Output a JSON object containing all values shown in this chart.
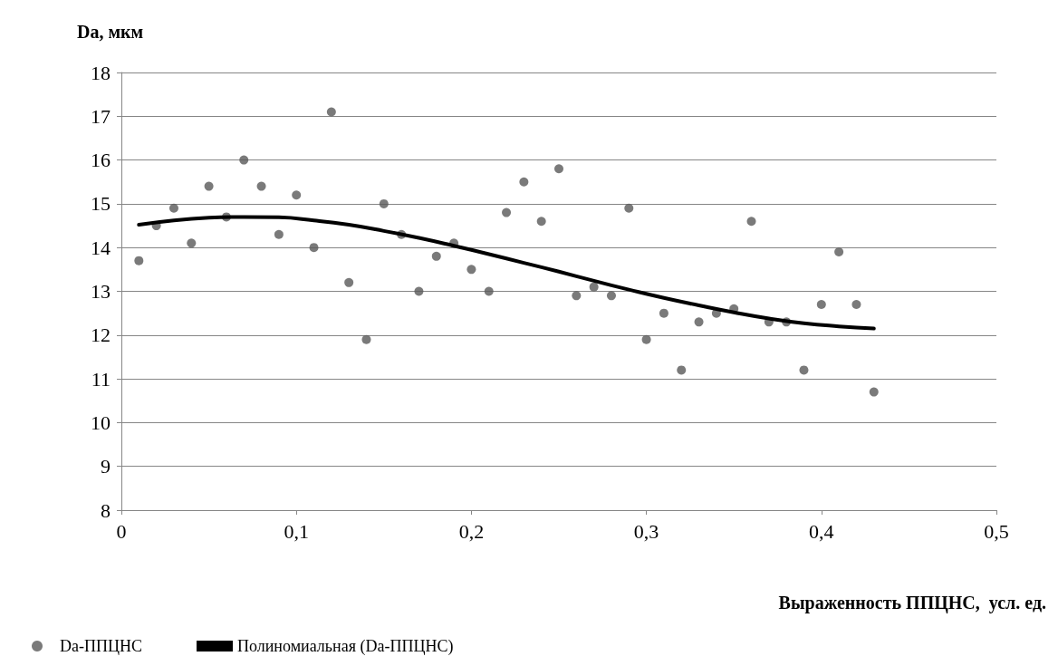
{
  "chart_data": {
    "type": "scatter",
    "xlabel": "Выраженность ППЦНС,  усл. ед.",
    "ylabel": "Da, мкм",
    "xlim": [
      0,
      0.5
    ],
    "xticks": [
      0,
      {
        "value": 0.1,
        "label": "0,1"
      },
      {
        "value": 0.2,
        "label": "0,2"
      },
      {
        "value": 0.3,
        "label": "0,3"
      },
      {
        "value": 0.4,
        "label": "0,4"
      },
      {
        "value": 0.5,
        "label": "0,5"
      }
    ],
    "ylim": [
      8,
      18
    ],
    "yticks": [
      8,
      9,
      10,
      11,
      12,
      13,
      14,
      15,
      16,
      17,
      18
    ],
    "grid": "y",
    "legend": "bottom left",
    "series": [
      {
        "name": "Da-ППЦНС",
        "marker": "circle",
        "color": "#595959",
        "x": [
          0.01,
          0.02,
          0.03,
          0.04,
          0.05,
          0.06,
          0.07,
          0.08,
          0.09,
          0.1,
          0.11,
          0.12,
          0.13,
          0.14,
          0.15,
          0.16,
          0.17,
          0.18,
          0.19,
          0.2,
          0.21,
          0.22,
          0.23,
          0.24,
          0.25,
          0.26,
          0.27,
          0.28,
          0.29,
          0.3,
          0.31,
          0.32,
          0.33,
          0.34,
          0.35,
          0.36,
          0.37,
          0.38,
          0.39,
          0.4,
          0.41,
          0.42,
          0.43
        ],
        "values": [
          13.7,
          14.5,
          14.9,
          14.1,
          15.4,
          14.7,
          16.0,
          15.4,
          14.3,
          15.2,
          14.0,
          17.1,
          13.2,
          11.9,
          15.0,
          14.3,
          13.0,
          13.8,
          14.1,
          13.5,
          13.0,
          14.8,
          15.5,
          14.6,
          15.8,
          12.9,
          13.1,
          12.9,
          14.9,
          11.9,
          12.5,
          11.2,
          12.3,
          12.5,
          12.6,
          14.6,
          12.3,
          12.3,
          11.2,
          12.7,
          13.9,
          12.7,
          10.7
        ]
      },
      {
        "name": "Полиномиальная (Da-ППЦНС)",
        "type": "line",
        "marker": "none",
        "line_style": "solid",
        "color": "#000000",
        "x": [
          0.01,
          0.03,
          0.05,
          0.07,
          0.09,
          0.11,
          0.13,
          0.15,
          0.17,
          0.19,
          0.21,
          0.23,
          0.25,
          0.27,
          0.29,
          0.31,
          0.33,
          0.35,
          0.37,
          0.39,
          0.41,
          0.43
        ],
        "values": [
          14.52,
          14.62,
          14.68,
          14.7,
          14.69,
          14.62,
          14.52,
          14.38,
          14.22,
          14.04,
          13.85,
          13.65,
          13.45,
          13.24,
          13.04,
          12.85,
          12.68,
          12.52,
          12.38,
          12.27,
          12.2,
          12.15
        ]
      }
    ]
  }
}
